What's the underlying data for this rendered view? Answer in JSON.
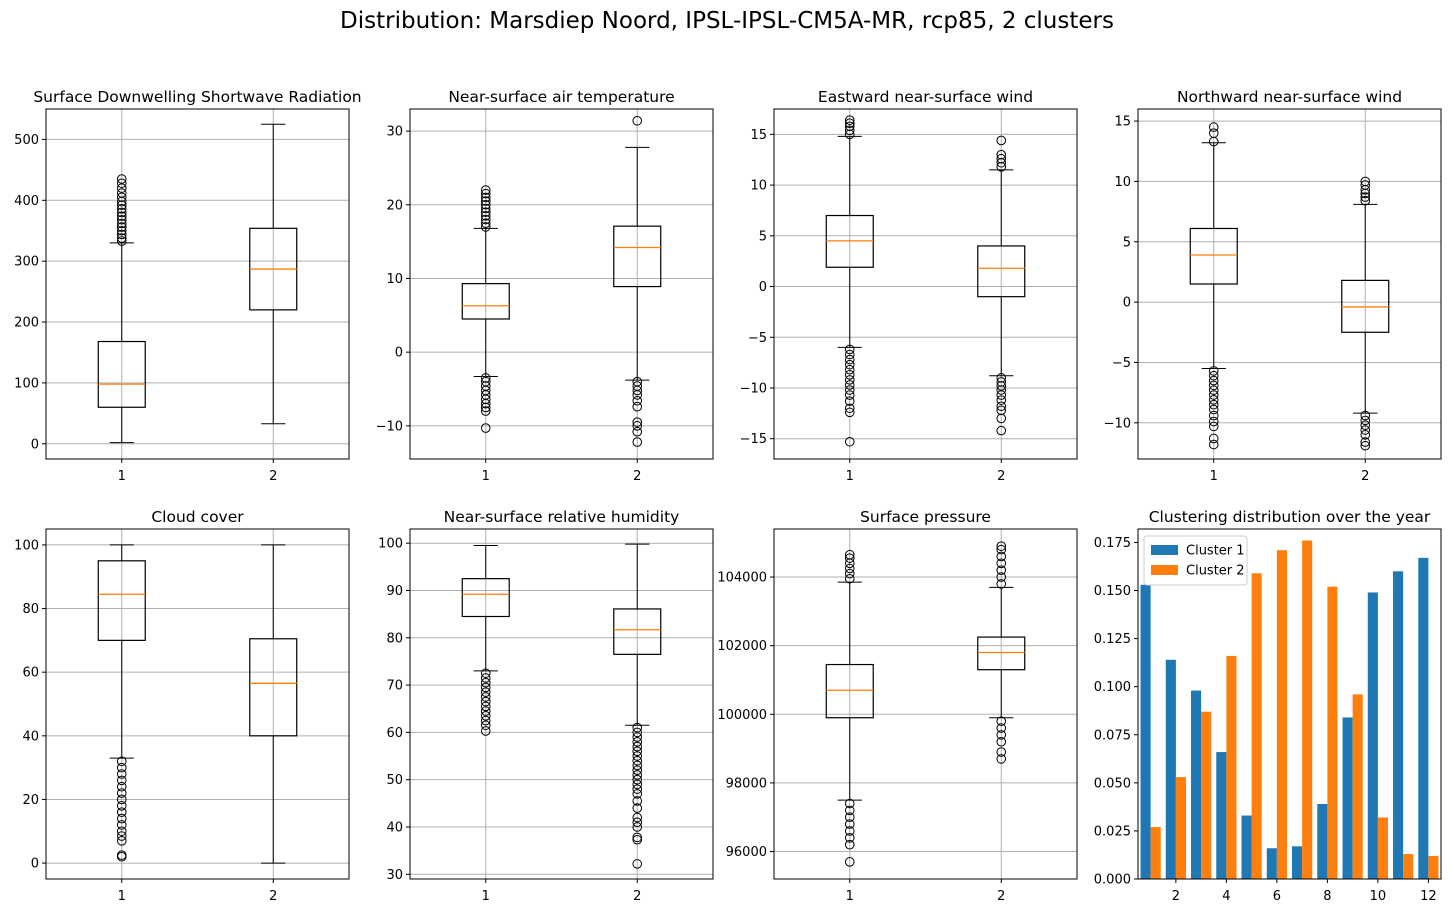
{
  "suptitle": "Distribution: Marsdiep Noord, IPSL-IPSL-CM5A-MR, rcp85, 2 clusters",
  "colors": {
    "box": "#000000",
    "median": "#ff7f0e",
    "grid": "#b0b0b0",
    "cluster1": "#1f77b4",
    "cluster2": "#ff7f0e"
  },
  "chart_data": [
    {
      "type": "box",
      "title": "Surface Downwelling Shortwave Radiation",
      "categories": [
        "1",
        "2"
      ],
      "ylim": [
        -25,
        550
      ],
      "yticks": [
        0,
        100,
        200,
        300,
        400,
        500
      ],
      "grid": true,
      "boxes": [
        {
          "whisker_low": 2,
          "q1": 60,
          "median": 98,
          "q3": 168,
          "whisker_high": 330,
          "outliers": [
            333,
            338,
            344,
            350,
            356,
            362,
            368,
            374,
            380,
            386,
            392,
            398,
            405,
            412,
            420,
            428,
            435
          ]
        },
        {
          "whisker_low": 33,
          "q1": 220,
          "median": 287,
          "q3": 354,
          "whisker_high": 525,
          "outliers": []
        }
      ]
    },
    {
      "type": "box",
      "title": "Near-surface air temperature",
      "categories": [
        "1",
        "2"
      ],
      "ylim": [
        -14.5,
        33
      ],
      "yticks": [
        -10,
        0,
        10,
        20,
        30
      ],
      "grid": true,
      "boxes": [
        {
          "whisker_low": -3.3,
          "q1": 4.5,
          "median": 6.3,
          "q3": 9.3,
          "whisker_high": 16.8,
          "outliers": [
            -3.5,
            -4,
            -4.6,
            -5.2,
            -5.8,
            -6.4,
            -7,
            -7.5,
            -8,
            -10.3,
            17,
            17.5,
            18,
            18.5,
            19,
            19.5,
            20,
            20.5,
            21,
            21.5,
            22
          ]
        },
        {
          "whisker_low": -3.8,
          "q1": 8.9,
          "median": 14.2,
          "q3": 17.1,
          "whisker_high": 27.8,
          "outliers": [
            -4,
            -4.6,
            -5.2,
            -5.8,
            -6.6,
            -7.4,
            -9.5,
            -10,
            -10.8,
            -12.2,
            31.4
          ]
        }
      ]
    },
    {
      "type": "box",
      "title": "Eastward near-surface wind",
      "categories": [
        "1",
        "2"
      ],
      "ylim": [
        -17,
        17.5
      ],
      "yticks": [
        -15,
        -10,
        -5,
        0,
        5,
        10,
        15
      ],
      "grid": true,
      "boxes": [
        {
          "whisker_low": -6,
          "q1": 1.9,
          "median": 4.5,
          "q3": 7,
          "whisker_high": 14.8,
          "outliers": [
            -6.2,
            -6.7,
            -7.2,
            -7.7,
            -8.2,
            -8.7,
            -9.2,
            -9.7,
            -10.2,
            -10.7,
            -11.3,
            -12,
            -12.4,
            -15.3,
            15,
            15.4,
            15.8,
            16.1,
            16.4
          ]
        },
        {
          "whisker_low": -8.8,
          "q1": -1,
          "median": 1.8,
          "q3": 4,
          "whisker_high": 11.5,
          "outliers": [
            -9,
            -9.4,
            -9.8,
            -10.2,
            -10.7,
            -11.2,
            -11.8,
            -12.2,
            -13,
            -14.2,
            11.8,
            12.2,
            12.6,
            13,
            14.4
          ]
        }
      ]
    },
    {
      "type": "box",
      "title": "Northward near-surface wind",
      "categories": [
        "1",
        "2"
      ],
      "ylim": [
        -13,
        16
      ],
      "yticks": [
        -10,
        -5,
        0,
        5,
        10,
        15
      ],
      "grid": true,
      "boxes": [
        {
          "whisker_low": -5.5,
          "q1": 1.5,
          "median": 3.9,
          "q3": 6.1,
          "whisker_high": 13.2,
          "outliers": [
            -5.7,
            -6.1,
            -6.5,
            -6.9,
            -7.3,
            -7.7,
            -8.1,
            -8.5,
            -8.9,
            -9.4,
            -9.9,
            -10.3,
            -11.3,
            -11.8,
            13.3,
            14,
            14.5
          ]
        },
        {
          "whisker_low": -9.2,
          "q1": -2.5,
          "median": -0.4,
          "q3": 1.8,
          "whisker_high": 8.1,
          "outliers": [
            -9.4,
            -9.8,
            -10.2,
            -10.6,
            -11,
            -11.6,
            -11.9,
            8.4,
            8.7,
            9,
            9.3,
            9.7,
            10
          ]
        }
      ]
    },
    {
      "type": "box",
      "title": "Cloud cover",
      "categories": [
        "1",
        "2"
      ],
      "ylim": [
        -5,
        105
      ],
      "yticks": [
        0,
        20,
        40,
        60,
        80,
        100
      ],
      "grid": true,
      "boxes": [
        {
          "whisker_low": 33,
          "q1": 70,
          "median": 84.5,
          "q3": 95,
          "whisker_high": 100,
          "outliers": [
            32,
            30,
            28,
            26,
            24,
            22,
            20,
            18,
            16,
            14,
            12,
            10,
            8.5,
            7,
            2.5,
            2
          ]
        },
        {
          "whisker_low": 0,
          "q1": 40,
          "median": 56.5,
          "q3": 70.5,
          "whisker_high": 100,
          "outliers": []
        }
      ]
    },
    {
      "type": "box",
      "title": "Near-surface relative humidity",
      "categories": [
        "1",
        "2"
      ],
      "ylim": [
        29,
        103
      ],
      "yticks": [
        30,
        40,
        50,
        60,
        70,
        80,
        90,
        100
      ],
      "grid": true,
      "boxes": [
        {
          "whisker_low": 73,
          "q1": 84.5,
          "median": 89.2,
          "q3": 92.5,
          "whisker_high": 99.5,
          "outliers": [
            72.5,
            71.5,
            70.5,
            69.5,
            68.5,
            67.5,
            66.5,
            65.5,
            64.5,
            63.5,
            62.5,
            61.5,
            60.3
          ]
        },
        {
          "whisker_low": 61.5,
          "q1": 76.5,
          "median": 81.7,
          "q3": 86.1,
          "whisker_high": 99.8,
          "outliers": [
            61,
            60,
            59,
            58,
            57,
            56,
            55,
            54,
            53,
            52,
            51,
            50,
            49,
            48,
            47,
            45.5,
            44,
            42,
            41,
            40,
            37.8,
            37.3,
            32.2
          ]
        }
      ]
    },
    {
      "type": "box",
      "title": "Surface pressure",
      "categories": [
        "1",
        "2"
      ],
      "ylim": [
        95200,
        105400
      ],
      "yticks": [
        96000,
        98000,
        100000,
        102000,
        104000
      ],
      "grid": true,
      "boxes": [
        {
          "whisker_low": 97500,
          "q1": 99900,
          "median": 100700,
          "q3": 101450,
          "whisker_high": 103850,
          "outliers": [
            97400,
            97200,
            97000,
            96800,
            96600,
            96400,
            96200,
            95700,
            103950,
            104100,
            104250,
            104400,
            104550,
            104650
          ]
        },
        {
          "whisker_low": 99900,
          "q1": 101300,
          "median": 101800,
          "q3": 102250,
          "whisker_high": 103700,
          "outliers": [
            99800,
            99600,
            99400,
            99200,
            98900,
            98700,
            103800,
            104000,
            104200,
            104400,
            104600,
            104800,
            104900
          ]
        }
      ]
    },
    {
      "type": "bar",
      "title": "Clustering distribution over the year",
      "categories": [
        1,
        2,
        3,
        4,
        5,
        6,
        7,
        8,
        9,
        10,
        11,
        12
      ],
      "xticks": [
        2,
        4,
        6,
        8,
        10,
        12
      ],
      "xlim": [
        0.5,
        12.5
      ],
      "ylim": [
        0,
        0.182
      ],
      "yticks": [
        "0.000",
        "0.025",
        "0.050",
        "0.075",
        "0.100",
        "0.125",
        "0.150",
        "0.175"
      ],
      "legend": "top-left",
      "series": [
        {
          "name": "Cluster 1",
          "values": [
            0.153,
            0.114,
            0.098,
            0.066,
            0.033,
            0.016,
            0.017,
            0.039,
            0.084,
            0.149,
            0.16,
            0.167
          ]
        },
        {
          "name": "Cluster 2",
          "values": [
            0.027,
            0.053,
            0.087,
            0.116,
            0.159,
            0.171,
            0.176,
            0.152,
            0.096,
            0.032,
            0.013,
            0.012
          ]
        }
      ]
    }
  ]
}
